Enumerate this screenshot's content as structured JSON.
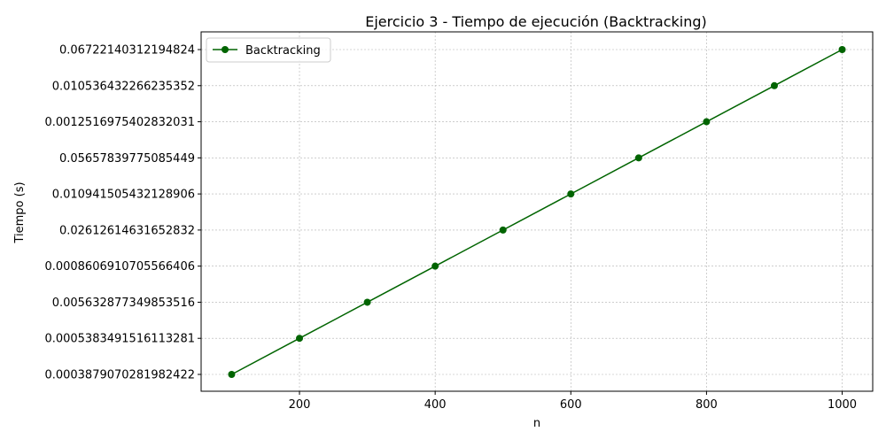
{
  "chart_data": {
    "type": "line",
    "title": "Ejercicio 3 - Tiempo de ejecución (Backtracking)",
    "xlabel": "n",
    "ylabel": "Tiempo (s)",
    "x": [
      100,
      200,
      300,
      400,
      500,
      600,
      700,
      800,
      900,
      1000
    ],
    "y_categories": [
      "0.0003879070281982422",
      "0.0005383491516113281",
      "0.005632877349853516",
      "0.0008606910705566406",
      "0.02612614631652832",
      "0.010941505432128906",
      "0.05657839775085449",
      "0.0012516975402832031",
      "0.010536432266235352",
      "0.06722140312194824"
    ],
    "xlim": [
      55,
      1045
    ],
    "x_ticks": [
      200,
      400,
      600,
      800,
      1000
    ],
    "grid": true,
    "legend_position": "top-left",
    "series": [
      {
        "name": "Backtracking",
        "color": "#006400",
        "marker": "circle",
        "x": [
          100,
          200,
          300,
          400,
          500,
          600,
          700,
          800,
          900,
          1000
        ],
        "y": [
          "0.0003879070281982422",
          "0.0005383491516113281",
          "0.005632877349853516",
          "0.0008606910705566406",
          "0.02612614631652832",
          "0.010941505432128906",
          "0.05657839775085449",
          "0.0012516975402832031",
          "0.010536432266235352",
          "0.06722140312194824"
        ]
      }
    ]
  }
}
